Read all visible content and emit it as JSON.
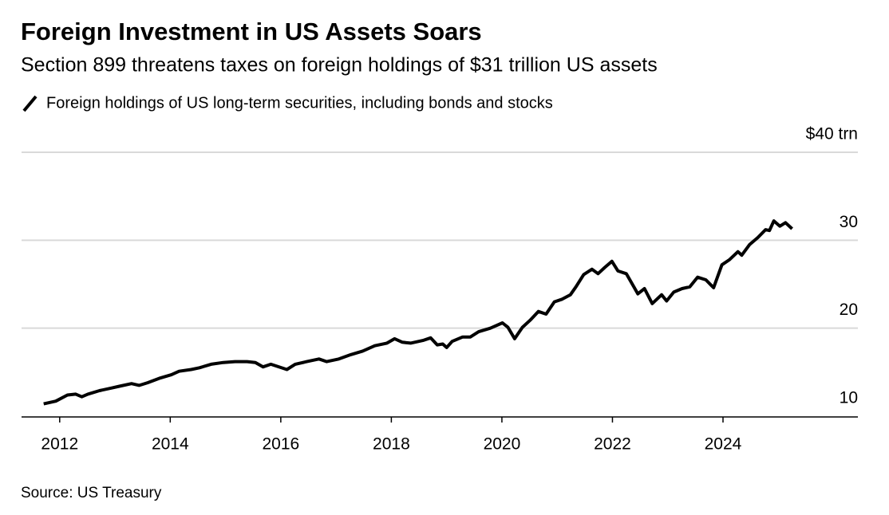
{
  "chart_data": {
    "type": "line",
    "title": "Foreign Investment in US Assets Soars",
    "subtitle": "Section 899 threatens taxes on foreign holdings of $31 trillion US assets",
    "source": "Source: US Treasury",
    "x": [
      2011.71,
      2011.93,
      2012.14,
      2012.29,
      2012.4,
      2012.51,
      2012.72,
      2012.94,
      2013.08,
      2013.3,
      2013.44,
      2013.59,
      2013.8,
      2014.02,
      2014.16,
      2014.38,
      2014.53,
      2014.74,
      2014.96,
      2015.17,
      2015.39,
      2015.54,
      2015.68,
      2015.82,
      2016.11,
      2016.26,
      2016.47,
      2016.69,
      2016.83,
      2017.05,
      2017.27,
      2017.48,
      2017.7,
      2017.92,
      2018.06,
      2018.2,
      2018.35,
      2018.57,
      2018.71,
      2018.83,
      2018.93,
      2019.0,
      2019.1,
      2019.29,
      2019.43,
      2019.58,
      2019.79,
      2020.01,
      2020.11,
      2020.23,
      2020.37,
      2020.51,
      2020.66,
      2020.8,
      2020.95,
      2021.09,
      2021.24,
      2021.34,
      2021.48,
      2021.63,
      2021.74,
      2021.86,
      2021.99,
      2022.1,
      2022.25,
      2022.36,
      2022.46,
      2022.58,
      2022.72,
      2022.89,
      2022.98,
      2023.11,
      2023.26,
      2023.4,
      2023.54,
      2023.69,
      2023.83,
      2023.98,
      2024.12,
      2024.27,
      2024.34,
      2024.48,
      2024.63,
      2024.77,
      2024.84,
      2024.92,
      2025.03,
      2025.13,
      2025.25
    ],
    "series": [
      {
        "name": "Foreign holdings of US long-term securities, including bonds and stocks",
        "color": "#000000",
        "values": [
          11.4,
          11.7,
          12.4,
          12.5,
          12.2,
          12.5,
          12.9,
          13.2,
          13.4,
          13.7,
          13.5,
          13.8,
          14.3,
          14.7,
          15.1,
          15.3,
          15.5,
          15.9,
          16.1,
          16.2,
          16.2,
          16.1,
          15.6,
          15.9,
          15.3,
          15.9,
          16.2,
          16.5,
          16.2,
          16.5,
          17.0,
          17.4,
          18.0,
          18.3,
          18.8,
          18.4,
          18.3,
          18.6,
          18.9,
          18.1,
          18.2,
          17.8,
          18.5,
          19.0,
          19.0,
          19.6,
          20.0,
          20.6,
          20.1,
          18.8,
          20.1,
          20.9,
          21.9,
          21.6,
          23.0,
          23.3,
          23.8,
          24.7,
          26.1,
          26.7,
          26.2,
          26.9,
          27.6,
          26.5,
          26.2,
          25.0,
          23.9,
          24.5,
          22.8,
          23.8,
          23.1,
          24.1,
          24.5,
          24.7,
          25.8,
          25.5,
          24.6,
          27.2,
          27.8,
          28.7,
          28.3,
          29.5,
          30.3,
          31.2,
          31.1,
          32.2,
          31.6,
          32.0,
          31.3
        ]
      }
    ],
    "xlim": [
      2011.31,
      2026.44
    ],
    "xticks": [
      2012,
      2014,
      2016,
      2018,
      2020,
      2022,
      2024
    ],
    "ylim": [
      10,
      40
    ],
    "yticks": [
      10,
      20,
      30,
      {
        "value": 40,
        "label": "$40 trn"
      }
    ],
    "grid": true
  }
}
